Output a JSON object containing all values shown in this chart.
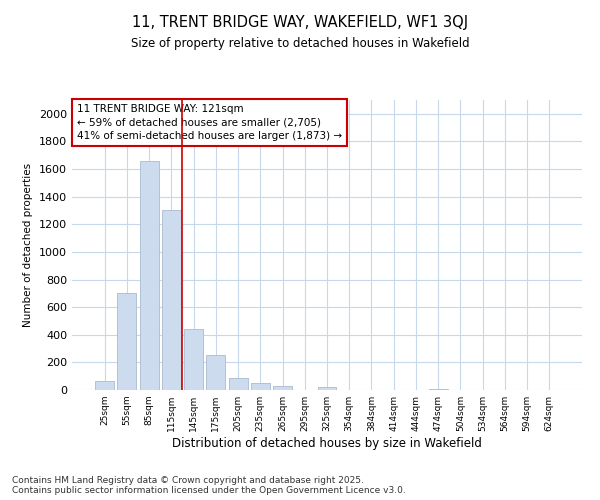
{
  "title": "11, TRENT BRIDGE WAY, WAKEFIELD, WF1 3QJ",
  "subtitle": "Size of property relative to detached houses in Wakefield",
  "xlabel": "Distribution of detached houses by size in Wakefield",
  "ylabel": "Number of detached properties",
  "categories": [
    "25sqm",
    "55sqm",
    "85sqm",
    "115sqm",
    "145sqm",
    "175sqm",
    "205sqm",
    "235sqm",
    "265sqm",
    "295sqm",
    "325sqm",
    "354sqm",
    "384sqm",
    "414sqm",
    "444sqm",
    "474sqm",
    "504sqm",
    "534sqm",
    "564sqm",
    "594sqm",
    "624sqm"
  ],
  "values": [
    65,
    700,
    1660,
    1300,
    440,
    250,
    85,
    50,
    30,
    0,
    25,
    0,
    0,
    0,
    0,
    8,
    0,
    0,
    0,
    0,
    0
  ],
  "bar_color": "#ccdcee",
  "bar_edge_color": "#aabbd0",
  "vline_x_index": 3,
  "vline_color": "#cc0000",
  "annotation_box_color": "#cc0000",
  "annotation_text_line1": "11 TRENT BRIDGE WAY: 121sqm",
  "annotation_text_line2": "← 59% of detached houses are smaller (2,705)",
  "annotation_text_line3": "41% of semi-detached houses are larger (1,873) →",
  "ylim": [
    0,
    2100
  ],
  "yticks": [
    0,
    200,
    400,
    600,
    800,
    1000,
    1200,
    1400,
    1600,
    1800,
    2000
  ],
  "background_color": "#ffffff",
  "grid_color": "#c8d8ec",
  "footer_line1": "Contains HM Land Registry data © Crown copyright and database right 2025.",
  "footer_line2": "Contains public sector information licensed under the Open Government Licence v3.0."
}
